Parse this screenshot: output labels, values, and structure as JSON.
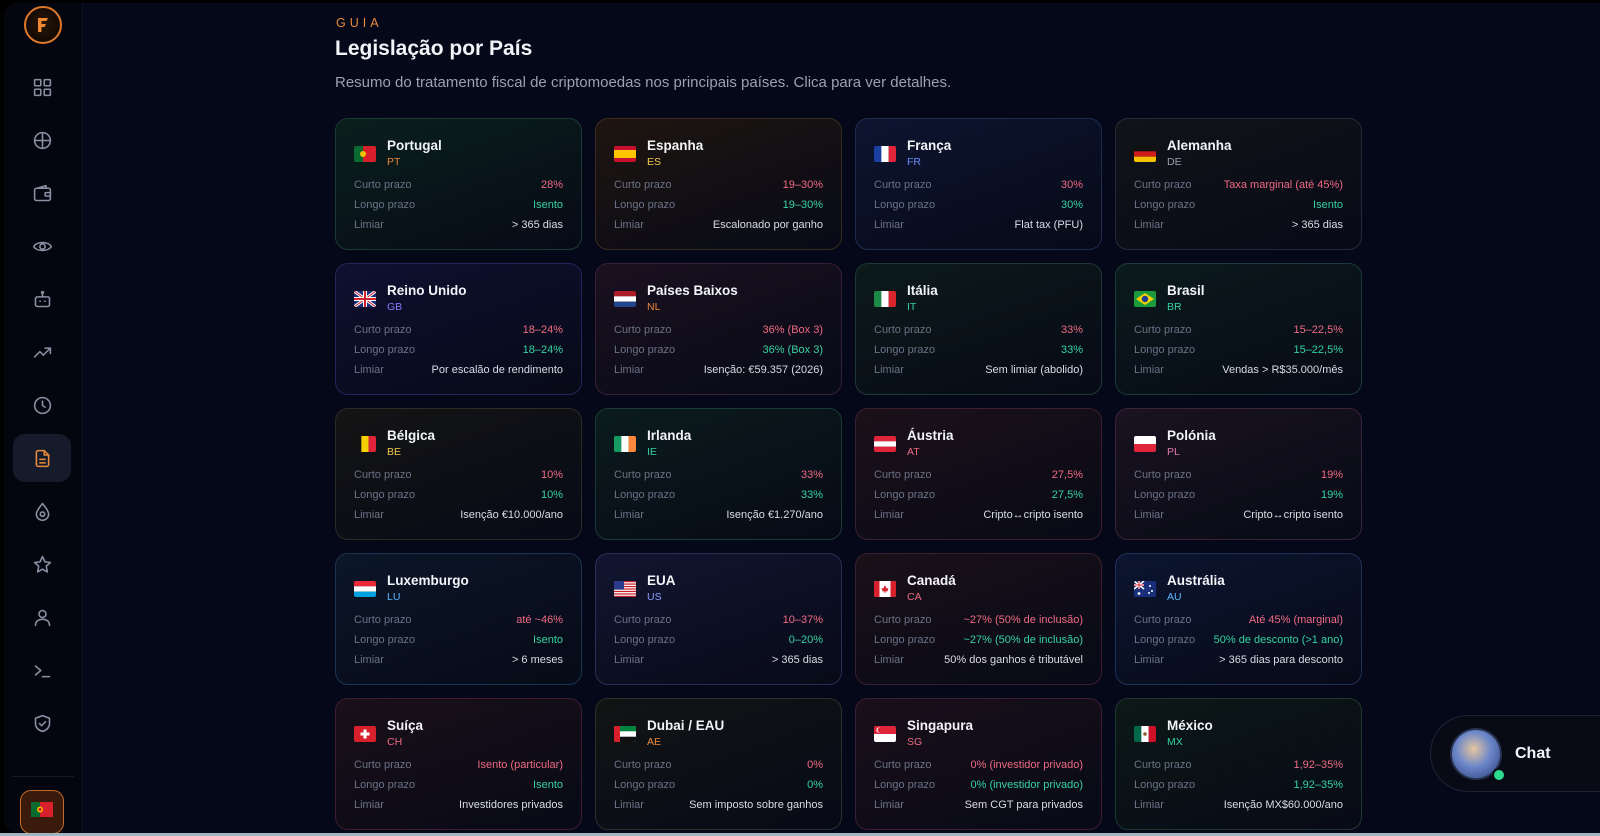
{
  "page": {
    "eyebrow": "GUIA",
    "title": "Legislação por País",
    "subtitle": "Resumo do tratamento fiscal de criptomoedas nos principais países. Clica para ver detalhes."
  },
  "sidebar": {
    "items": [
      {
        "icon": "dashboard-grid-icon"
      },
      {
        "icon": "globe-icon"
      },
      {
        "icon": "wallet-icon"
      },
      {
        "icon": "eye-icon"
      },
      {
        "icon": "robot-icon"
      },
      {
        "icon": "trending-up-icon"
      },
      {
        "icon": "clock-icon"
      },
      {
        "icon": "document-icon",
        "active": true
      },
      {
        "icon": "drop-icon"
      },
      {
        "icon": "star-icon"
      },
      {
        "icon": "user-icon"
      },
      {
        "icon": "terminal-icon"
      },
      {
        "icon": "shield-check-icon"
      }
    ],
    "language_flag": "PT"
  },
  "labels": {
    "short": "Curto prazo",
    "long": "Longo prazo",
    "threshold": "Limiar"
  },
  "countries": [
    {
      "name": "Portugal",
      "code": "PT",
      "short": "28%",
      "short_tone": "red",
      "long": "Isento",
      "long_tone": "green",
      "threshold": "> 365 dias"
    },
    {
      "name": "Espanha",
      "code": "ES",
      "short": "19–30%",
      "short_tone": "red",
      "long": "19–30%",
      "long_tone": "green",
      "threshold": "Escalonado por ganho"
    },
    {
      "name": "França",
      "code": "FR",
      "short": "30%",
      "short_tone": "red",
      "long": "30%",
      "long_tone": "green",
      "threshold": "Flat tax (PFU)"
    },
    {
      "name": "Alemanha",
      "code": "DE",
      "short": "Taxa marginal (até 45%)",
      "short_tone": "red",
      "long": "Isento",
      "long_tone": "green",
      "threshold": "> 365 dias"
    },
    {
      "name": "Reino Unido",
      "code": "GB",
      "short": "18–24%",
      "short_tone": "red",
      "long": "18–24%",
      "long_tone": "green",
      "threshold": "Por escalão de rendimento"
    },
    {
      "name": "Países Baixos",
      "code": "NL",
      "short": "36% (Box 3)",
      "short_tone": "red",
      "long": "36% (Box 3)",
      "long_tone": "green",
      "threshold": "Isenção: €59.357 (2026)"
    },
    {
      "name": "Itália",
      "code": "IT",
      "short": "33%",
      "short_tone": "red",
      "long": "33%",
      "long_tone": "green",
      "threshold": "Sem limiar (abolido)"
    },
    {
      "name": "Brasil",
      "code": "BR",
      "short": "15–22,5%",
      "short_tone": "red",
      "long": "15–22,5%",
      "long_tone": "green",
      "threshold": "Vendas > R$35.000/mês"
    },
    {
      "name": "Bélgica",
      "code": "BE",
      "short": "10%",
      "short_tone": "red",
      "long": "10%",
      "long_tone": "green",
      "threshold": "Isenção €10.000/ano"
    },
    {
      "name": "Irlanda",
      "code": "IE",
      "short": "33%",
      "short_tone": "red",
      "long": "33%",
      "long_tone": "green",
      "threshold": "Isenção €1.270/ano"
    },
    {
      "name": "Áustria",
      "code": "AT",
      "short": "27,5%",
      "short_tone": "red",
      "long": "27,5%",
      "long_tone": "green",
      "threshold": "Cripto↔cripto isento"
    },
    {
      "name": "Polónia",
      "code": "PL",
      "short": "19%",
      "short_tone": "red",
      "long": "19%",
      "long_tone": "green",
      "threshold": "Cripto↔cripto isento"
    },
    {
      "name": "Luxemburgo",
      "code": "LU",
      "short": "até ~46%",
      "short_tone": "red",
      "long": "Isento",
      "long_tone": "green",
      "threshold": "> 6 meses"
    },
    {
      "name": "EUA",
      "code": "US",
      "short": "10–37%",
      "short_tone": "red",
      "long": "0–20%",
      "long_tone": "green",
      "threshold": "> 365 dias"
    },
    {
      "name": "Canadá",
      "code": "CA",
      "short": "~27% (50% de inclusão)",
      "short_tone": "red",
      "long": "~27% (50% de inclusão)",
      "long_tone": "green",
      "threshold": "50% dos ganhos é tributável"
    },
    {
      "name": "Austrália",
      "code": "AU",
      "short": "Até 45% (marginal)",
      "short_tone": "red",
      "long": "50% de desconto (>1 ano)",
      "long_tone": "green",
      "threshold": "> 365 dias para desconto"
    },
    {
      "name": "Suíça",
      "code": "CH",
      "short": "Isento (particular)",
      "short_tone": "red",
      "long": "Isento",
      "long_tone": "green",
      "threshold": "Investidores privados"
    },
    {
      "name": "Dubai / EAU",
      "code": "AE",
      "short": "0%",
      "short_tone": "red",
      "long": "0%",
      "long_tone": "green",
      "threshold": "Sem imposto sobre ganhos"
    },
    {
      "name": "Singapura",
      "code": "SG",
      "short": "0% (investidor privado)",
      "short_tone": "red",
      "long": "0% (investidor privado)",
      "long_tone": "green",
      "threshold": "Sem CGT para privados"
    },
    {
      "name": "México",
      "code": "MX",
      "short": "1,92–35%",
      "short_tone": "red",
      "long": "1,92–35%",
      "long_tone": "green",
      "threshold": "Isenção MX$60.000/ano"
    }
  ],
  "chat": {
    "label": "Chat"
  },
  "colors": {
    "accent": "#e9893a",
    "negative": "#f06a82",
    "positive": "#35d3a1",
    "background": "#050818"
  }
}
